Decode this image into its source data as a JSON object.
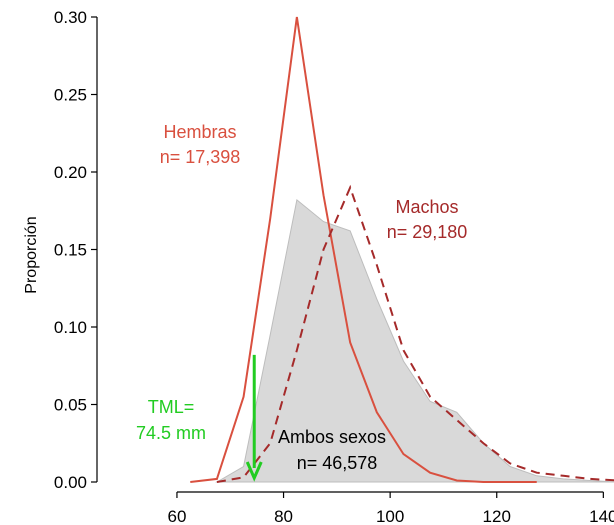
{
  "chart_data": {
    "type": "line",
    "title": "",
    "xlabel": "",
    "ylabel": "Proporción",
    "xlim": [
      45,
      142
    ],
    "ylim": [
      0,
      0.3
    ],
    "xticks": [
      60,
      80,
      100,
      120,
      140
    ],
    "yticks": [
      0.0,
      0.05,
      0.1,
      0.15,
      0.2,
      0.25,
      0.3
    ],
    "ytick_labels": [
      "0.00",
      "0.05",
      "0.10",
      "0.15",
      "0.20",
      "0.25",
      "0.30"
    ],
    "grid": false,
    "series": [
      {
        "name": "Hembras",
        "style": "solid",
        "color": "#D9503F",
        "x": [
          62.5,
          67.5,
          72.5,
          77.5,
          82.5,
          87.5,
          92.5,
          97.5,
          102.5,
          107.5,
          112.5,
          117.5,
          122.5,
          127.5
        ],
        "y": [
          0.0,
          0.002,
          0.055,
          0.17,
          0.3,
          0.185,
          0.09,
          0.045,
          0.018,
          0.006,
          0.001,
          0.0,
          0.0,
          0.0
        ]
      },
      {
        "name": "Machos",
        "style": "dashed",
        "color": "#A52A2A",
        "x": [
          67.5,
          72.5,
          77.5,
          82.5,
          87.5,
          92.5,
          97.5,
          102.5,
          107.5,
          112.5,
          117.5,
          122.5,
          127.5,
          132.5,
          137.5,
          142.5
        ],
        "y": [
          0.0,
          0.003,
          0.025,
          0.085,
          0.15,
          0.19,
          0.14,
          0.085,
          0.055,
          0.04,
          0.025,
          0.012,
          0.006,
          0.004,
          0.002,
          0.001
        ]
      },
      {
        "name": "Ambos sexos",
        "style": "area",
        "color": "#D9D9D9",
        "x": [
          67.5,
          72.5,
          77.5,
          82.5,
          87.5,
          92.5,
          97.5,
          102.5,
          107.5,
          112.5,
          117.5,
          122.5,
          127.5,
          132.5,
          137.5,
          142.5
        ],
        "y": [
          0.0,
          0.01,
          0.095,
          0.182,
          0.168,
          0.162,
          0.118,
          0.078,
          0.052,
          0.045,
          0.025,
          0.01,
          0.004,
          0.002,
          0.001,
          0.0
        ]
      }
    ],
    "annotations": [
      {
        "id": "hembras",
        "lines": [
          "Hembras",
          "n= 17,398"
        ],
        "color": "#D9503F"
      },
      {
        "id": "machos",
        "lines": [
          "Machos",
          "n= 29,180"
        ],
        "color": "#A52A2A"
      },
      {
        "id": "ambos",
        "lines": [
          "Ambos sexos",
          "n= 46,578"
        ],
        "color": "#000000"
      },
      {
        "id": "tml",
        "lines": [
          "TML=",
          "74.5 mm"
        ],
        "color": "#22CC22"
      }
    ],
    "arrow": {
      "x": 74.5,
      "y_from": 0.082,
      "y_to": 0.0,
      "color": "#22CC22"
    }
  }
}
